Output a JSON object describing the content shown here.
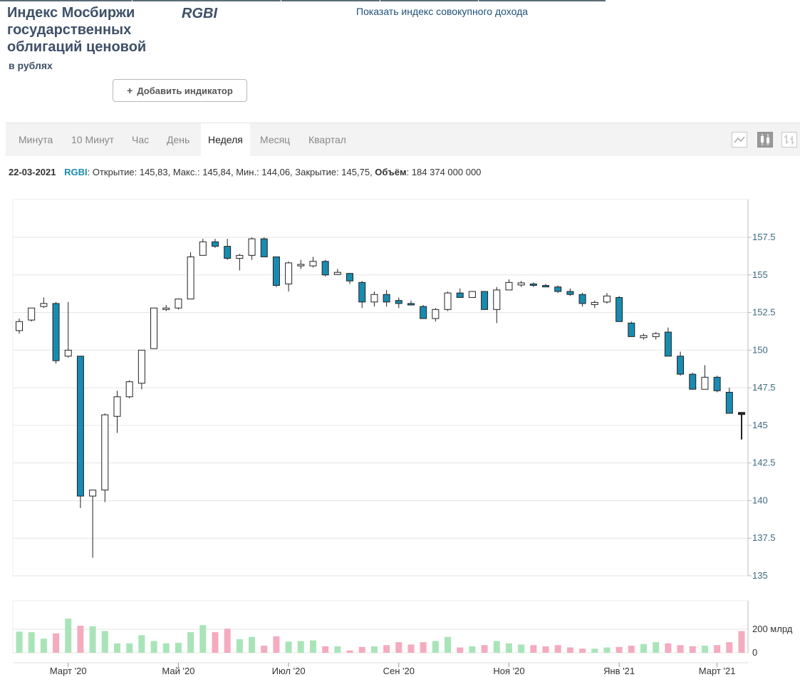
{
  "header": {
    "title": "Индекс Мосбиржи государственных облигаций ценовой",
    "subtitle": "в рублях",
    "ticker": "RGBI",
    "total_return_link": "Показать индекс совокупного дохода",
    "add_indicator_label": "Добавить индикатор"
  },
  "tabs": [
    {
      "label": "Минута",
      "active": false
    },
    {
      "label": "10 Минут",
      "active": false
    },
    {
      "label": "Час",
      "active": false
    },
    {
      "label": "День",
      "active": false
    },
    {
      "label": "Неделя",
      "active": true
    },
    {
      "label": "Месяц",
      "active": false
    },
    {
      "label": "Квартал",
      "active": false
    }
  ],
  "view_buttons": [
    {
      "icon": "line-chart-icon",
      "active": false
    },
    {
      "icon": "candlestick-icon",
      "active": true
    },
    {
      "icon": "ohlc-bars-icon",
      "active": false
    }
  ],
  "info": {
    "date": "22-03-2021",
    "symbol": "RGBI",
    "text": ": Открытие: 145,83, Макс.: 145,84, Мин.: 144,06, Закрытие: 145,75,",
    "volume_label": "Объём",
    "volume_value": ": 184 374 000 000"
  },
  "colors": {
    "up_fill": "#ffffff",
    "down_fill": "#1a8bb0",
    "wick": "#222222",
    "vol_up": "#a8e4b8",
    "vol_down": "#f4aabf",
    "grid": "#e6e6e6",
    "axis_text": "#3d6a80"
  },
  "chart_data": {
    "type": "candlestick",
    "ticker": "RGBI",
    "ylim": [
      135,
      158
    ],
    "yticks": [
      "157.5",
      "155",
      "152.5",
      "150",
      "147.5",
      "145",
      "142.5",
      "140",
      "137.5",
      "135"
    ],
    "xticks": [
      "Март '20",
      "Май '20",
      "Июл '20",
      "Сен '20",
      "Ноя '20",
      "Янв '21",
      "Март '21"
    ],
    "volume_ticks": [
      "200 млрд",
      "0"
    ],
    "volume_max": 250,
    "candles": [
      {
        "o": 151.3,
        "h": 152.1,
        "l": 151.1,
        "c": 151.9,
        "v": 180
      },
      {
        "o": 152.0,
        "h": 152.8,
        "l": 151.9,
        "c": 152.8,
        "v": 175
      },
      {
        "o": 152.9,
        "h": 153.5,
        "l": 152.8,
        "c": 153.1,
        "v": 120
      },
      {
        "o": 153.1,
        "h": 153.2,
        "l": 149.1,
        "c": 149.3,
        "v": 165
      },
      {
        "o": 149.6,
        "h": 153.2,
        "l": 149.5,
        "c": 150.0,
        "v": 290
      },
      {
        "o": 149.6,
        "h": 149.6,
        "l": 139.5,
        "c": 140.3,
        "v": 230
      },
      {
        "o": 140.3,
        "h": 140.7,
        "l": 136.2,
        "c": 140.7,
        "v": 225
      },
      {
        "o": 140.7,
        "h": 145.8,
        "l": 139.9,
        "c": 145.7,
        "v": 185
      },
      {
        "o": 145.6,
        "h": 147.3,
        "l": 144.5,
        "c": 146.9,
        "v": 80
      },
      {
        "o": 146.9,
        "h": 148.0,
        "l": 146.8,
        "c": 147.9,
        "v": 80
      },
      {
        "o": 147.8,
        "h": 150.0,
        "l": 147.4,
        "c": 150.0,
        "v": 150
      },
      {
        "o": 150.1,
        "h": 152.8,
        "l": 150.1,
        "c": 152.8,
        "v": 100
      },
      {
        "o": 152.7,
        "h": 153.0,
        "l": 152.6,
        "c": 152.8,
        "v": 80
      },
      {
        "o": 152.8,
        "h": 153.4,
        "l": 152.7,
        "c": 153.4,
        "v": 85
      },
      {
        "o": 153.4,
        "h": 156.5,
        "l": 153.4,
        "c": 156.2,
        "v": 175
      },
      {
        "o": 156.3,
        "h": 157.4,
        "l": 156.3,
        "c": 157.2,
        "v": 235
      },
      {
        "o": 157.2,
        "h": 157.4,
        "l": 156.8,
        "c": 156.9,
        "v": 175
      },
      {
        "o": 156.9,
        "h": 157.4,
        "l": 156.0,
        "c": 156.1,
        "v": 205
      },
      {
        "o": 156.1,
        "h": 156.4,
        "l": 155.3,
        "c": 156.3,
        "v": 115
      },
      {
        "o": 156.3,
        "h": 157.5,
        "l": 156.0,
        "c": 157.4,
        "v": 135
      },
      {
        "o": 157.4,
        "h": 157.5,
        "l": 156.2,
        "c": 156.2,
        "v": 60
      },
      {
        "o": 156.2,
        "h": 156.2,
        "l": 154.2,
        "c": 154.3,
        "v": 140
      },
      {
        "o": 154.4,
        "h": 155.9,
        "l": 153.9,
        "c": 155.8,
        "v": 95
      },
      {
        "o": 155.6,
        "h": 156.0,
        "l": 155.4,
        "c": 155.7,
        "v": 100
      },
      {
        "o": 155.6,
        "h": 156.2,
        "l": 155.5,
        "c": 155.9,
        "v": 105
      },
      {
        "o": 155.9,
        "h": 156.0,
        "l": 154.9,
        "c": 155.0,
        "v": 55
      },
      {
        "o": 155.1,
        "h": 155.4,
        "l": 155.0,
        "c": 155.1,
        "v": 55
      },
      {
        "o": 155.1,
        "h": 155.1,
        "l": 154.4,
        "c": 154.6,
        "v": 20
      },
      {
        "o": 154.5,
        "h": 154.6,
        "l": 152.8,
        "c": 153.2,
        "v": 50
      },
      {
        "o": 153.2,
        "h": 153.9,
        "l": 152.9,
        "c": 153.7,
        "v": 55
      },
      {
        "o": 153.7,
        "h": 154.0,
        "l": 152.9,
        "c": 153.2,
        "v": 65
      },
      {
        "o": 153.3,
        "h": 153.5,
        "l": 152.8,
        "c": 153.1,
        "v": 90
      },
      {
        "o": 153.1,
        "h": 153.3,
        "l": 153.0,
        "c": 153.0,
        "v": 70
      },
      {
        "o": 152.9,
        "h": 153.0,
        "l": 152.1,
        "c": 152.1,
        "v": 90
      },
      {
        "o": 152.1,
        "h": 152.8,
        "l": 151.9,
        "c": 152.7,
        "v": 100
      },
      {
        "o": 152.7,
        "h": 153.9,
        "l": 152.6,
        "c": 153.8,
        "v": 135
      },
      {
        "o": 153.8,
        "h": 154.1,
        "l": 153.5,
        "c": 153.5,
        "v": 45
      },
      {
        "o": 153.5,
        "h": 153.9,
        "l": 153.5,
        "c": 153.9,
        "v": 55
      },
      {
        "o": 153.9,
        "h": 153.9,
        "l": 152.7,
        "c": 152.7,
        "v": 65
      },
      {
        "o": 152.7,
        "h": 154.2,
        "l": 151.8,
        "c": 154.0,
        "v": 100
      },
      {
        "o": 154.0,
        "h": 154.7,
        "l": 154.0,
        "c": 154.5,
        "v": 80
      },
      {
        "o": 154.4,
        "h": 154.6,
        "l": 154.2,
        "c": 154.4,
        "v": 70
      },
      {
        "o": 154.4,
        "h": 154.5,
        "l": 154.2,
        "c": 154.3,
        "v": 65
      },
      {
        "o": 154.3,
        "h": 154.4,
        "l": 154.2,
        "c": 154.2,
        "v": 55
      },
      {
        "o": 154.2,
        "h": 154.3,
        "l": 153.8,
        "c": 153.9,
        "v": 65
      },
      {
        "o": 153.9,
        "h": 154.1,
        "l": 153.6,
        "c": 153.7,
        "v": 45
      },
      {
        "o": 153.7,
        "h": 153.8,
        "l": 152.9,
        "c": 153.1,
        "v": 35
      },
      {
        "o": 153.1,
        "h": 153.3,
        "l": 152.8,
        "c": 153.1,
        "v": 35
      },
      {
        "o": 153.2,
        "h": 153.8,
        "l": 153.1,
        "c": 153.6,
        "v": 45
      },
      {
        "o": 153.5,
        "h": 153.6,
        "l": 151.9,
        "c": 151.9,
        "v": 50
      },
      {
        "o": 151.8,
        "h": 151.9,
        "l": 150.9,
        "c": 150.9,
        "v": 60
      },
      {
        "o": 150.9,
        "h": 151.1,
        "l": 150.7,
        "c": 150.9,
        "v": 75
      },
      {
        "o": 150.9,
        "h": 151.2,
        "l": 150.7,
        "c": 151.1,
        "v": 90
      },
      {
        "o": 151.2,
        "h": 151.5,
        "l": 149.6,
        "c": 149.6,
        "v": 80
      },
      {
        "o": 149.6,
        "h": 149.9,
        "l": 148.3,
        "c": 148.4,
        "v": 65
      },
      {
        "o": 148.4,
        "h": 148.5,
        "l": 147.4,
        "c": 147.4,
        "v": 55
      },
      {
        "o": 147.4,
        "h": 149.0,
        "l": 147.4,
        "c": 148.2,
        "v": 60
      },
      {
        "o": 148.2,
        "h": 148.3,
        "l": 147.2,
        "c": 147.3,
        "v": 65
      },
      {
        "o": 147.2,
        "h": 147.5,
        "l": 145.8,
        "c": 145.8,
        "v": 90
      },
      {
        "o": 145.83,
        "h": 145.84,
        "l": 144.06,
        "c": 145.75,
        "v": 184.4
      }
    ]
  }
}
